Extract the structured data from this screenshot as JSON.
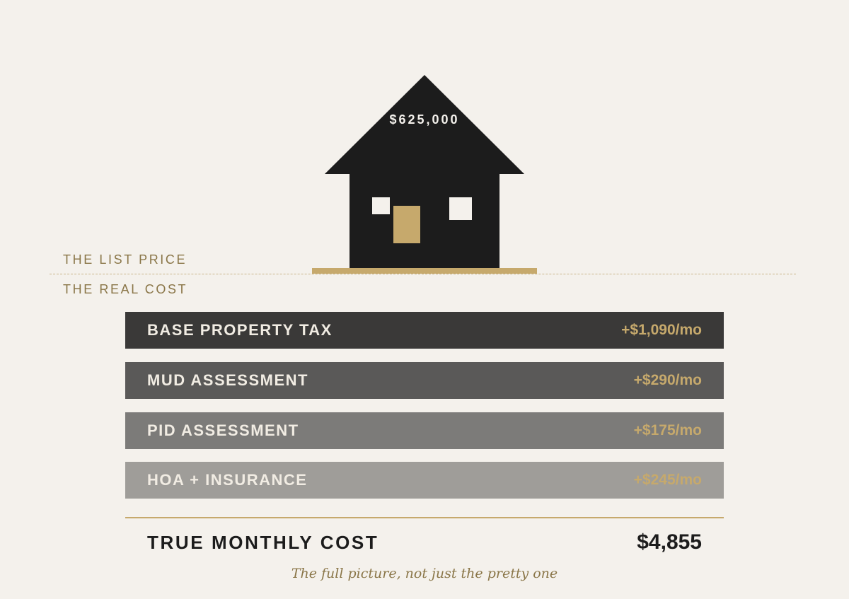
{
  "colors": {
    "background": "#f4f1ec",
    "house": "#1c1c1c",
    "accent_gold": "#c6a96c",
    "label_gold": "#8a7648"
  },
  "house": {
    "price": "$625,000"
  },
  "labels": {
    "list_price": "THE LIST PRICE",
    "real_cost": "THE REAL COST"
  },
  "cost_items": [
    {
      "label": "BASE PROPERTY TAX",
      "amount": "+$1,090/mo",
      "color": "#3a3938"
    },
    {
      "label": "MUD ASSESSMENT",
      "amount": "+$290/mo",
      "color": "#5a5958"
    },
    {
      "label": "PID ASSESSMENT",
      "amount": "+$175/mo",
      "color": "#7c7b79"
    },
    {
      "label": "HOA + INSURANCE",
      "amount": "+$245/mo",
      "color": "#9f9d99"
    }
  ],
  "total": {
    "label": "TRUE MONTHLY COST",
    "value": "$4,855"
  },
  "caption": "The full picture, not just the pretty one"
}
